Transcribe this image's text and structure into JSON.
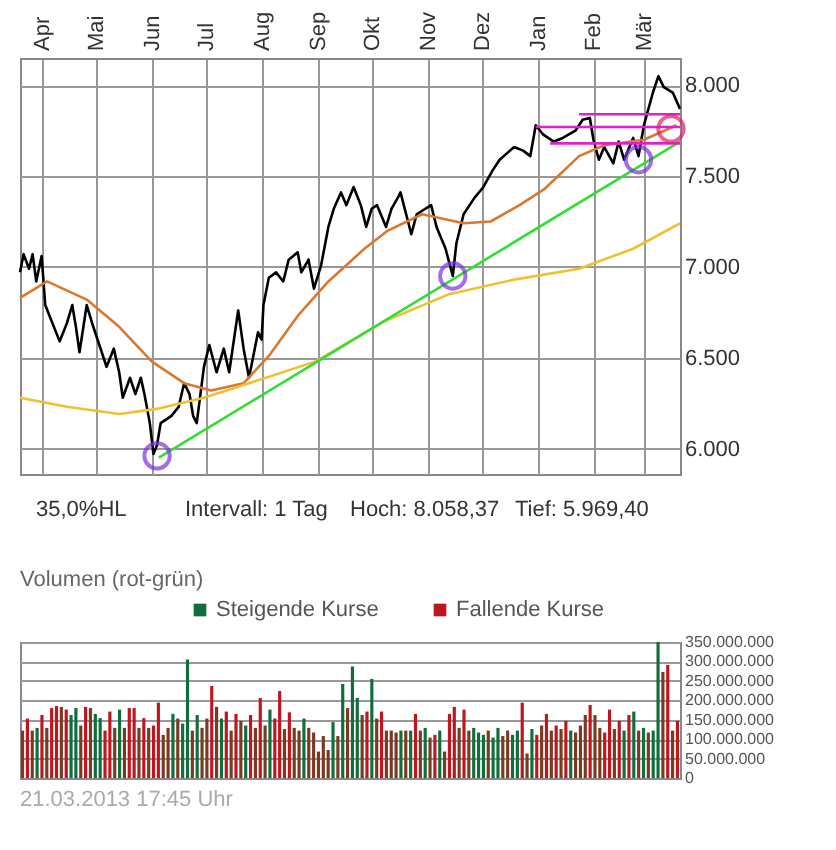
{
  "chart_data": [
    {
      "type": "line",
      "xlim": [
        "2012-03-20",
        "2013-03-21"
      ],
      "ylim": [
        5860,
        8150
      ],
      "xticks": [
        {
          "value": "2012-04-01",
          "label": "Apr"
        },
        {
          "value": "2012-05-01",
          "label": "Mai"
        },
        {
          "value": "2012-06-01",
          "label": "Jun"
        },
        {
          "value": "2012-07-01",
          "label": "Jul"
        },
        {
          "value": "2012-08-01",
          "label": "Aug"
        },
        {
          "value": "2012-09-01",
          "label": "Sep"
        },
        {
          "value": "2012-10-01",
          "label": "Okt"
        },
        {
          "value": "2012-11-01",
          "label": "Nov"
        },
        {
          "value": "2012-12-01",
          "label": "Dez"
        },
        {
          "value": "2013-01-01",
          "label": "Jan"
        },
        {
          "value": "2013-02-01",
          "label": "Feb"
        },
        {
          "value": "2013-03-01",
          "label": "Mär"
        }
      ],
      "yticks": [
        {
          "value": 6000,
          "label": "6.000"
        },
        {
          "value": 6500,
          "label": "6.500"
        },
        {
          "value": 7000,
          "label": "7.000"
        },
        {
          "value": 7500,
          "label": "7.500"
        },
        {
          "value": 8000,
          "label": "8.000"
        }
      ],
      "grid": true,
      "annotations": [
        "35,0%HL",
        "Intervall: 1 Tag",
        "Hoch: 8.058,37",
        "Tief: 5.969,40"
      ],
      "series": [
        {
          "type": "line",
          "color": "#000000",
          "x": [
            "2012-03-20",
            "2012-03-22",
            "2012-03-25",
            "2012-03-27",
            "2012-03-29",
            "2012-04-01",
            "2012-04-03",
            "2012-04-07",
            "2012-04-11",
            "2012-04-15",
            "2012-04-18",
            "2012-04-20",
            "2012-04-22",
            "2012-04-26",
            "2012-04-29",
            "2012-05-03",
            "2012-05-07",
            "2012-05-11",
            "2012-05-14",
            "2012-05-16",
            "2012-05-20",
            "2012-05-23",
            "2012-05-26",
            "2012-05-28",
            "2012-05-31",
            "2012-06-02",
            "2012-06-04",
            "2012-06-06",
            "2012-06-12",
            "2012-06-16",
            "2012-06-19",
            "2012-06-22",
            "2012-06-24",
            "2012-06-26",
            "2012-06-30",
            "2012-07-03",
            "2012-07-07",
            "2012-07-11",
            "2012-07-14",
            "2012-07-19",
            "2012-07-22",
            "2012-07-25",
            "2012-07-30",
            "2012-08-01",
            "2012-08-02",
            "2012-08-05",
            "2012-08-09",
            "2012-08-13",
            "2012-08-16",
            "2012-08-21",
            "2012-08-23",
            "2012-08-27",
            "2012-08-30",
            "2012-09-03",
            "2012-09-07",
            "2012-09-10",
            "2012-09-14",
            "2012-09-17",
            "2012-09-21",
            "2012-09-25",
            "2012-09-28",
            "2012-10-01",
            "2012-10-04",
            "2012-10-09",
            "2012-10-12",
            "2012-10-16",
            "2012-10-17",
            "2012-10-23",
            "2012-10-26",
            "2012-11-03",
            "2012-11-06",
            "2012-11-11",
            "2012-11-15",
            "2012-11-17",
            "2012-11-21",
            "2012-11-27",
            "2012-12-02",
            "2012-12-07",
            "2012-12-11",
            "2012-12-19",
            "2012-12-24",
            "2012-12-28",
            "2012-12-31",
            "2013-01-04",
            "2013-01-10",
            "2013-01-15",
            "2013-01-22",
            "2013-01-26",
            "2013-01-30",
            "2013-02-01",
            "2013-02-04",
            "2013-02-07",
            "2013-02-12",
            "2013-02-15",
            "2013-02-18",
            "2013-02-23",
            "2013-02-26",
            "2013-03-01",
            "2013-03-06",
            "2013-03-09",
            "2013-03-12",
            "2013-03-17",
            "2013-03-21"
          ],
          "values": [
            6970,
            7070,
            6990,
            7070,
            6920,
            7060,
            6790,
            6690,
            6590,
            6690,
            6790,
            6670,
            6530,
            6790,
            6690,
            6570,
            6450,
            6550,
            6420,
            6280,
            6390,
            6300,
            6390,
            6300,
            6140,
            5970,
            6020,
            6140,
            6180,
            6230,
            6360,
            6300,
            6180,
            6140,
            6450,
            6570,
            6420,
            6550,
            6420,
            6760,
            6550,
            6390,
            6640,
            6600,
            6790,
            6940,
            6970,
            6920,
            7040,
            7080,
            6970,
            7040,
            6880,
            7010,
            7220,
            7320,
            7410,
            7340,
            7440,
            7340,
            7220,
            7320,
            7340,
            7220,
            7320,
            7390,
            7410,
            7180,
            7290,
            7340,
            7220,
            7100,
            6950,
            7130,
            7290,
            7380,
            7440,
            7530,
            7590,
            7660,
            7640,
            7610,
            7780,
            7730,
            7690,
            7710,
            7750,
            7810,
            7820,
            7700,
            7590,
            7660,
            7570,
            7690,
            7590,
            7710,
            7610,
            7780,
            7960,
            8050,
            7990,
            7960,
            7870
          ]
        },
        {
          "type": "line",
          "color": "#d9782f",
          "x": [
            "2012-03-20",
            "2012-04-04",
            "2012-04-26",
            "2012-05-14",
            "2012-06-01",
            "2012-06-19",
            "2012-07-04",
            "2012-07-22",
            "2012-08-05",
            "2012-08-21",
            "2012-09-07",
            "2012-09-27",
            "2012-10-10",
            "2012-10-29",
            "2012-11-21",
            "2012-12-06",
            "2012-12-22",
            "2013-01-05",
            "2013-01-24",
            "2013-02-07",
            "2013-03-01",
            "2013-03-19"
          ],
          "values": [
            6830,
            6920,
            6820,
            6670,
            6480,
            6360,
            6320,
            6360,
            6510,
            6730,
            6920,
            7100,
            7200,
            7290,
            7240,
            7250,
            7340,
            7430,
            7610,
            7670,
            7700,
            7780
          ]
        },
        {
          "type": "line",
          "color": "#f0c030",
          "x": [
            "2012-03-20",
            "2012-04-15",
            "2012-05-14",
            "2012-06-05",
            "2012-06-30",
            "2012-07-25",
            "2012-08-31",
            "2012-10-08",
            "2012-11-13",
            "2012-12-19",
            "2013-01-24",
            "2013-02-23",
            "2013-03-21"
          ],
          "values": [
            6280,
            6230,
            6190,
            6220,
            6280,
            6360,
            6480,
            6700,
            6850,
            6930,
            6990,
            7100,
            7240
          ]
        },
        {
          "type": "line",
          "color": "#33dd33",
          "x": [
            "2012-06-05",
            "2013-03-21"
          ],
          "values": [
            5950,
            7690
          ]
        },
        {
          "type": "line",
          "color": "#e020d0",
          "x": [
            "2013-01-24",
            "2013-03-21"
          ],
          "values": [
            7840,
            7840
          ]
        },
        {
          "type": "line",
          "color": "#e020d0",
          "x": [
            "2012-12-31",
            "2013-03-21"
          ],
          "values": [
            7770,
            7770
          ]
        },
        {
          "type": "line",
          "color": "#e020d0",
          "x": [
            "2013-01-08",
            "2013-03-21"
          ],
          "values": [
            7680,
            7680
          ]
        },
        {
          "type": "scatter",
          "marker": "circle",
          "color": "#7b30e0",
          "x": [
            "2012-06-04",
            "2012-11-15",
            "2013-02-26"
          ],
          "values": [
            5960,
            6950,
            7590
          ]
        },
        {
          "type": "scatter",
          "marker": "circle",
          "color": "#e0206a",
          "x": [
            "2013-03-16"
          ],
          "values": [
            7760
          ]
        }
      ]
    },
    {
      "type": "bar",
      "title": "Volumen (rot-grün)",
      "legend": "top right",
      "grid": "y",
      "ylim": [
        0,
        350000000.0
      ],
      "yticks": [
        {
          "value": 0,
          "label": "0"
        },
        {
          "value": 50000000.0,
          "label": "50.000.000"
        },
        {
          "value": 100000000.0,
          "label": "100.000.000"
        },
        {
          "value": 150000000.0,
          "label": "150.000.000"
        },
        {
          "value": 200000000.0,
          "label": "200.000.000"
        },
        {
          "value": 250000000.0,
          "label": "250.000.000"
        },
        {
          "value": 300000000.0,
          "label": "300.000.000"
        },
        {
          "value": 350000000.0,
          "label": "350.000.000"
        }
      ],
      "annotations": [
        "21.03.2013 17:45 Uhr"
      ],
      "categories": [
        null,
        null,
        null,
        null,
        null,
        null,
        null,
        null,
        null,
        null,
        null,
        null,
        null,
        null,
        null,
        null,
        null,
        null,
        null,
        null,
        null,
        null,
        null,
        null,
        null,
        null,
        null,
        null,
        null,
        null,
        null,
        null,
        null,
        null,
        null,
        null,
        null,
        null,
        null,
        null,
        null,
        null,
        null,
        null,
        null,
        null,
        null,
        null,
        null,
        null,
        null,
        null,
        null,
        null,
        null,
        null,
        null,
        null,
        null,
        null,
        null,
        null,
        null,
        null,
        null,
        null,
        null,
        null,
        null,
        null,
        null,
        null,
        null,
        null,
        null,
        null,
        null,
        null,
        null,
        null,
        null,
        null,
        null,
        null,
        null,
        null,
        null,
        null,
        null,
        null,
        null,
        null,
        null,
        null,
        null,
        null,
        null,
        null,
        null,
        null,
        null,
        null,
        null,
        null,
        null,
        null,
        null,
        null,
        null,
        null,
        null,
        null,
        null,
        null,
        null,
        null,
        null,
        null,
        null,
        null,
        null,
        null,
        null,
        null,
        null,
        null,
        null,
        null,
        null,
        null,
        null,
        null,
        null,
        null,
        null,
        null
      ],
      "series": [
        {
          "name": "Steigende Kurse",
          "color": "#0f6e3c",
          "values": [
            null,
            null,
            null,
            129000000.0,
            null,
            null,
            null,
            null,
            null,
            null,
            162000000.0,
            180000000.0,
            null,
            null,
            null,
            165000000.0,
            154000000.0,
            null,
            null,
            null,
            176000000.0,
            null,
            null,
            null,
            null,
            null,
            null,
            null,
            null,
            null,
            null,
            165000000.0,
            null,
            140000000.0,
            305000000.0,
            null,
            162000000.0,
            null,
            null,
            null,
            null,
            153000000.0,
            null,
            null,
            null,
            null,
            135000000.0,
            null,
            null,
            null,
            null,
            176000000.0,
            null,
            null,
            null,
            null,
            null,
            null,
            153000000.0,
            null,
            null,
            null,
            null,
            null,
            144000000.0,
            null,
            242000000.0,
            null,
            287000000.0,
            206000000.0,
            null,
            null,
            255000000.0,
            null,
            null,
            null,
            null,
            null,
            122000000.0,
            null,
            122000000.0,
            null,
            null,
            129000000.0,
            null,
            null,
            122000000.0,
            null,
            null,
            null,
            null,
            null,
            null,
            129000000.0,
            117000000.0,
            111000000.0,
            null,
            104000000.0,
            129000000.0,
            null,
            null,
            111000000.0,
            122000000.0,
            null,
            null,
            126000000.0,
            null,
            null,
            null,
            null,
            null,
            null,
            null,
            122000000.0,
            null,
            null,
            null,
            null,
            null,
            null,
            null,
            null,
            null,
            null,
            122000000.0,
            null,
            171000000.0,
            null,
            129000000.0,
            null,
            122000000.0,
            350000000.0,
            null,
            null,
            null,
            null
          ]
        },
        {
          "name": "Fallende Kurse",
          "color": "#c0141e",
          "values": [
            null,
            153000000.0,
            null,
            null,
            162000000.0,
            null,
            180000000.0,
            185000000.0,
            null,
            176000000.0,
            null,
            null,
            null,
            183000000.0,
            null,
            null,
            null,
            122000000.0,
            171000000.0,
            null,
            null,
            null,
            180000000.0,
            180000000.0,
            null,
            154000000.0,
            null,
            135000000.0,
            194000000.0,
            null,
            null,
            null,
            null,
            null,
            null,
            null,
            null,
            null,
            null,
            237000000.0,
            null,
            null,
            171000000.0,
            null,
            165000000.0,
            null,
            null,
            162000000.0,
            null,
            206000000.0,
            null,
            null,
            153000000.0,
            224000000.0,
            null,
            169000000.0,
            null,
            null,
            null,
            null,
            null,
            null,
            null,
            null,
            null,
            null,
            null,
            null,
            null,
            null,
            null,
            171000000.0,
            null,
            null,
            171000000.0,
            null,
            null,
            null,
            null,
            null,
            null,
            165000000.0,
            null,
            null,
            null,
            111000000.0,
            null,
            null,
            165000000.0,
            183000000.0,
            null,
            176000000.0,
            null,
            null,
            null,
            null,
            null,
            null,
            null,
            null,
            null,
            null,
            null,
            194000000.0,
            null,
            null,
            111000000.0,
            null,
            165000000.0,
            null,
            135000000.0,
            null,
            147000000.0,
            null,
            null,
            null,
            null,
            188000000.0,
            null,
            null,
            117000000.0,
            176000000.0,
            null,
            147000000.0,
            null,
            162000000.0,
            null,
            null,
            null,
            null,
            null,
            null,
            null,
            291000000.0,
            null,
            147000000.0
          ]
        },
        {
          "color": "#7a3a22",
          "values": [
            122000000.0,
            null,
            122000000.0,
            null,
            null,
            129000000.0,
            null,
            null,
            183000000.0,
            null,
            null,
            null,
            135000000.0,
            null,
            180000000.0,
            null,
            null,
            null,
            null,
            129000000.0,
            null,
            129000000.0,
            null,
            null,
            129000000.0,
            null,
            129000000.0,
            null,
            null,
            111000000.0,
            129000000.0,
            null,
            153000000.0,
            null,
            null,
            122000000.0,
            null,
            129000000.0,
            153000000.0,
            null,
            183000000.0,
            null,
            null,
            122000000.0,
            null,
            147000000.0,
            null,
            null,
            129000000.0,
            null,
            135000000.0,
            null,
            null,
            null,
            126000000.0,
            null,
            129000000.0,
            122000000.0,
            null,
            129000000.0,
            117000000.0,
            68000000.0,
            108000000.0,
            72000000.0,
            null,
            108000000.0,
            null,
            180000000.0,
            null,
            null,
            162000000.0,
            null,
            null,
            153000000.0,
            null,
            122000000.0,
            122000000.0,
            117000000.0,
            null,
            122000000.0,
            null,
            null,
            122000000.0,
            null,
            104000000.0,
            null,
            null,
            68000000.0,
            null,
            null,
            129000000.0,
            null,
            122000000.0,
            null,
            null,
            null,
            122000000.0,
            null,
            null,
            108000000.0,
            122000000.0,
            null,
            null,
            null,
            63000000.0,
            null,
            null,
            135000000.0,
            null,
            122000000.0,
            null,
            126000000.0,
            null,
            null,
            117000000.0,
            135000000.0,
            162000000.0,
            null,
            162000000.0,
            129000000.0,
            null,
            null,
            126000000.0,
            null,
            null,
            null,
            null,
            122000000.0,
            null,
            117000000.0,
            null,
            null,
            273000000.0,
            null,
            122000000.0,
            null
          ]
        }
      ]
    }
  ]
}
